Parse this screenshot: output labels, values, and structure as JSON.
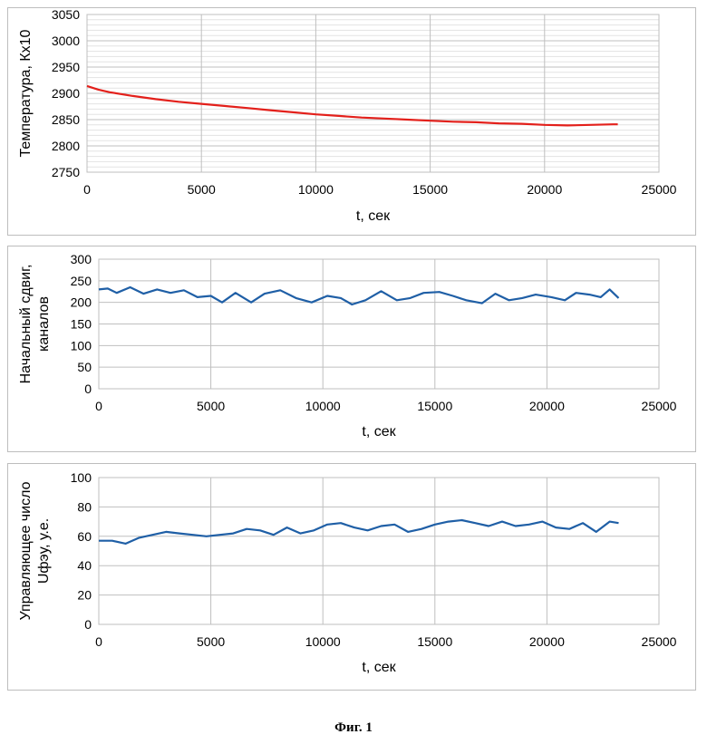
{
  "chart_data": [
    {
      "type": "line",
      "xlabel": "t,  сек",
      "ylabel": "Температура, Кх10",
      "xlim": [
        0,
        25000
      ],
      "ylim": [
        2750,
        3050
      ],
      "xticks": [
        "0",
        "5000",
        "10000",
        "15000",
        "20000",
        "25000"
      ],
      "yticks": [
        "2750",
        "2800",
        "2850",
        "2900",
        "2950",
        "3000",
        "3050"
      ],
      "grid": true,
      "line_color": "#e3201b",
      "series": [
        {
          "x": [
            0,
            500,
            1000,
            2000,
            3000,
            4000,
            5000,
            6000,
            7000,
            8000,
            9000,
            10000,
            11000,
            12000,
            13000,
            14000,
            15000,
            16000,
            17000,
            18000,
            19000,
            20000,
            21000,
            22000,
            23000,
            23200
          ],
          "values": [
            2914,
            2907,
            2902,
            2895,
            2889,
            2884,
            2880,
            2876,
            2872,
            2868,
            2864,
            2860,
            2857,
            2854,
            2852,
            2850,
            2848,
            2846,
            2845,
            2843,
            2842,
            2840,
            2839,
            2840,
            2841,
            2841
          ]
        }
      ]
    },
    {
      "type": "line",
      "xlabel": "t,  сек",
      "ylabel": [
        "Начальный сдвиг,",
        "каналов"
      ],
      "xlim": [
        0,
        25000
      ],
      "ylim": [
        0,
        300
      ],
      "xticks": [
        "0",
        "5000",
        "10000",
        "15000",
        "20000",
        "25000"
      ],
      "yticks": [
        "0",
        "50",
        "100",
        "150",
        "200",
        "250",
        "300"
      ],
      "grid": true,
      "line_color": "#1f5fa6",
      "series": [
        {
          "x": [
            0,
            400,
            800,
            1400,
            2000,
            2600,
            3200,
            3800,
            4400,
            5000,
            5500,
            6100,
            6800,
            7400,
            8100,
            8800,
            9500,
            10200,
            10800,
            11300,
            11900,
            12600,
            13300,
            13900,
            14500,
            15200,
            15800,
            16400,
            17100,
            17700,
            18300,
            18900,
            19500,
            20200,
            20800,
            21300,
            21900,
            22400,
            22800,
            23200
          ],
          "values": [
            230,
            232,
            222,
            235,
            220,
            230,
            222,
            228,
            212,
            215,
            200,
            222,
            200,
            220,
            228,
            210,
            200,
            215,
            210,
            195,
            205,
            226,
            205,
            210,
            222,
            224,
            215,
            205,
            198,
            220,
            205,
            210,
            218,
            212,
            205,
            222,
            218,
            212,
            230,
            210
          ]
        }
      ]
    },
    {
      "type": "line",
      "xlabel": "t, сек",
      "ylabel": [
        "Управляющее число",
        "Uфэу,  у.е."
      ],
      "xlim": [
        0,
        25000
      ],
      "ylim": [
        0,
        100
      ],
      "xticks": [
        "0",
        "5000",
        "10000",
        "15000",
        "20000",
        "25000"
      ],
      "yticks": [
        "0",
        "20",
        "40",
        "60",
        "80",
        "100"
      ],
      "grid": true,
      "line_color": "#1f5fa6",
      "series": [
        {
          "x": [
            0,
            600,
            1200,
            1800,
            2400,
            3000,
            3600,
            4200,
            4800,
            5400,
            6000,
            6600,
            7200,
            7800,
            8400,
            9000,
            9600,
            10200,
            10800,
            11400,
            12000,
            12600,
            13200,
            13800,
            14400,
            15000,
            15600,
            16200,
            16800,
            17400,
            18000,
            18600,
            19200,
            19800,
            20400,
            21000,
            21600,
            22200,
            22800,
            23200
          ],
          "values": [
            57,
            57,
            55,
            59,
            61,
            63,
            62,
            61,
            60,
            61,
            62,
            65,
            64,
            61,
            66,
            62,
            64,
            68,
            69,
            66,
            64,
            67,
            68,
            63,
            65,
            68,
            70,
            71,
            69,
            67,
            70,
            67,
            68,
            70,
            66,
            65,
            69,
            63,
            70,
            69
          ]
        }
      ]
    }
  ],
  "caption": "Фиг. 1"
}
